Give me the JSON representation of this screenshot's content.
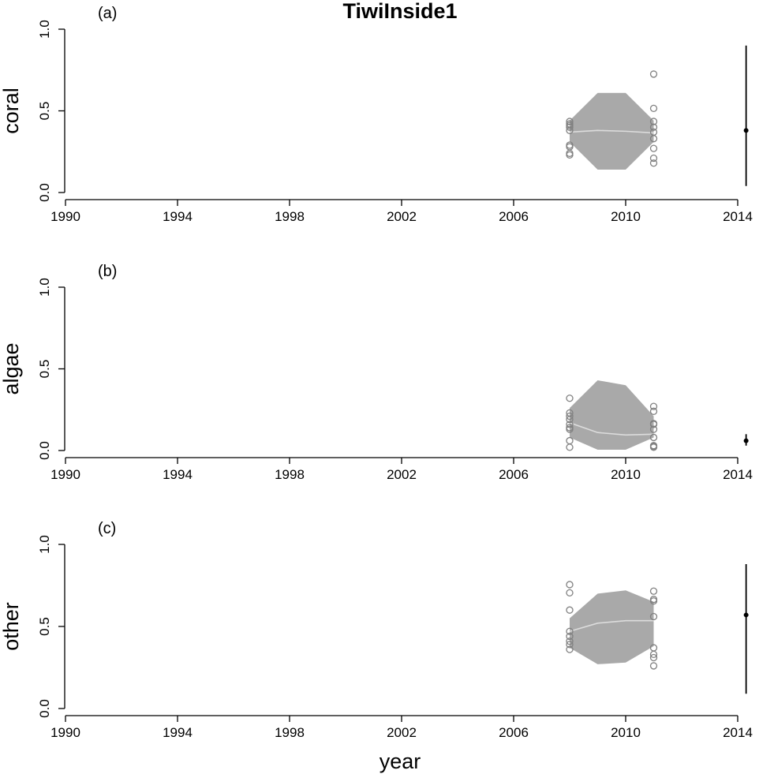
{
  "title": "TiwiInside1",
  "xlabel": "year",
  "chart_data": {
    "type": "scatter",
    "title": "TiwiInside1",
    "xlabel": "year",
    "xlim": [
      1990,
      2014
    ],
    "xticks": [
      1990,
      1994,
      1998,
      2002,
      2006,
      2010,
      2014
    ],
    "ylim": [
      0,
      1
    ],
    "yticks": [
      "0.0",
      "0.5",
      "1.0"
    ],
    "grid": false,
    "colors": {
      "band": "#a9a9a9",
      "median": "#dcdcdc",
      "points": "#808080",
      "estimate": "#000000"
    },
    "panels": [
      {
        "label": "(a)",
        "ylabel": "coral",
        "band_x": [
          2008,
          2009,
          2010,
          2011
        ],
        "band_lower": [
          0.31,
          0.14,
          0.14,
          0.31
        ],
        "band_upper": [
          0.44,
          0.61,
          0.61,
          0.44
        ],
        "median": [
          0.37,
          0.38,
          0.375,
          0.365
        ],
        "observations": [
          {
            "x": 2008,
            "y": [
              0.435,
              0.42,
              0.41,
              0.4,
              0.38,
              0.29,
              0.28,
              0.24,
              0.23
            ]
          },
          {
            "x": 2011,
            "y": [
              0.725,
              0.515,
              0.435,
              0.4,
              0.37,
              0.33,
              0.27,
              0.21,
              0.18
            ]
          }
        ],
        "estimate": {
          "x": 2014.3,
          "y": 0.38,
          "lower": 0.04,
          "upper": 0.9
        }
      },
      {
        "label": "(b)",
        "ylabel": "algae",
        "band_x": [
          2008,
          2009,
          2010,
          2011
        ],
        "band_lower": [
          0.08,
          0.005,
          0.005,
          0.08
        ],
        "band_upper": [
          0.26,
          0.43,
          0.4,
          0.21
        ],
        "median": [
          0.17,
          0.11,
          0.095,
          0.1
        ],
        "observations": [
          {
            "x": 2008,
            "y": [
              0.32,
              0.23,
              0.21,
              0.19,
              0.16,
              0.14,
              0.13,
              0.06,
              0.02
            ]
          },
          {
            "x": 2011,
            "y": [
              0.27,
              0.24,
              0.165,
              0.16,
              0.13,
              0.08,
              0.03,
              0.025,
              0.02
            ]
          }
        ],
        "estimate": {
          "x": 2014.3,
          "y": 0.06,
          "lower": 0.03,
          "upper": 0.1
        }
      },
      {
        "label": "(c)",
        "ylabel": "other",
        "band_x": [
          2008,
          2009,
          2010,
          2011
        ],
        "band_lower": [
          0.37,
          0.27,
          0.28,
          0.38
        ],
        "band_upper": [
          0.55,
          0.7,
          0.72,
          0.65
        ],
        "median": [
          0.47,
          0.52,
          0.535,
          0.535
        ],
        "observations": [
          {
            "x": 2008,
            "y": [
              0.755,
              0.705,
              0.6,
              0.47,
              0.44,
              0.41,
              0.39,
              0.36
            ]
          },
          {
            "x": 2011,
            "y": [
              0.715,
              0.665,
              0.655,
              0.56,
              0.37,
              0.33,
              0.31,
              0.26
            ]
          }
        ],
        "estimate": {
          "x": 2014.3,
          "y": 0.57,
          "lower": 0.09,
          "upper": 0.88
        }
      }
    ]
  }
}
